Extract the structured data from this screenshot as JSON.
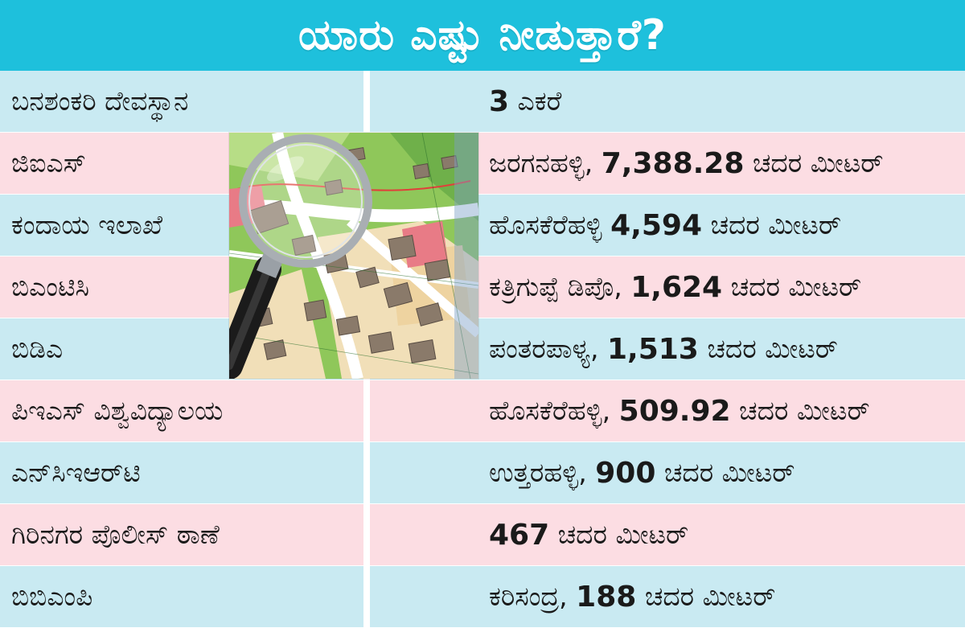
{
  "header": {
    "title": "ಯಾರು ಎಷ್ಟು ನೀಡುತ್ತಾರೆ?"
  },
  "rows": [
    {
      "org": "ಬನಶಂಕರಿ ದೇವಸ್ಥಾನ",
      "place": "",
      "qty": "3",
      "unit": " ಎಕರೆ",
      "bg": "blue"
    },
    {
      "org": "ಜಿಐಎಸ್",
      "place": "ಜರಗನಹಳ್ಳಿ, ",
      "qty": "7,388.28",
      "unit": " ಚದರ ಮೀಟರ್",
      "bg": "pink"
    },
    {
      "org": "ಕಂದಾಯ ಇಲಾಖೆ",
      "place": "ಹೊಸಕೆರೆಹಳ್ಳಿ ",
      "qty": "4,594",
      "unit": " ಚದರ ಮೀಟರ್",
      "bg": "blue"
    },
    {
      "org": "ಬಿಎಂಟಿಸಿ",
      "place": "ಕತ್ರಿಗುಪ್ಪೆ ಡಿಪೊ, ",
      "qty": "1,624",
      "unit": " ಚದರ ಮೀಟರ್",
      "bg": "pink"
    },
    {
      "org": "ಬಿಡಿಎ",
      "place": "ಪಂತರಪಾಳ್ಯ, ",
      "qty": "1,513",
      "unit": " ಚದರ ಮೀಟರ್",
      "bg": "blue"
    },
    {
      "org": "ಪಿಇಎಸ್ ವಿಶ್ವವಿದ್ಯಾಲಯ",
      "place": "ಹೊಸಕೆರೆಹಳ್ಳಿ, ",
      "qty": "509.92",
      "unit": " ಚದರ ಮೀಟರ್",
      "bg": "pink"
    },
    {
      "org": "ಎನ್‌ಸಿಇಆರ್‌ಟಿ",
      "place": "ಉತ್ತರಹಳ್ಳಿ, ",
      "qty": "900",
      "unit": " ಚದರ ಮೀಟರ್",
      "bg": "blue"
    },
    {
      "org": "ಗಿರಿನಗರ ಪೊಲೀಸ್ ಠಾಣೆ",
      "place": "",
      "qty": "467",
      "unit": " ಚದರ ಮೀಟರ್",
      "bg": "pink"
    },
    {
      "org": "ಬಿಬಿಎಂಪಿ",
      "place": "ಕರಿಸಂದ್ರ, ",
      "qty": "188",
      "unit": " ಚದರ ಮೀಟರ್",
      "bg": "blue"
    }
  ],
  "image": {
    "icon": "map-magnifier-icon"
  },
  "colors": {
    "header": "#1ec0dc",
    "row_blue": "#c9eaf2",
    "row_pink": "#fcdde3",
    "map_green": "#8fc75a",
    "map_plot": "#f1dfb8",
    "map_building": "#8a7a6a",
    "map_highlight": "#e87b86",
    "map_road": "#ffffff"
  }
}
